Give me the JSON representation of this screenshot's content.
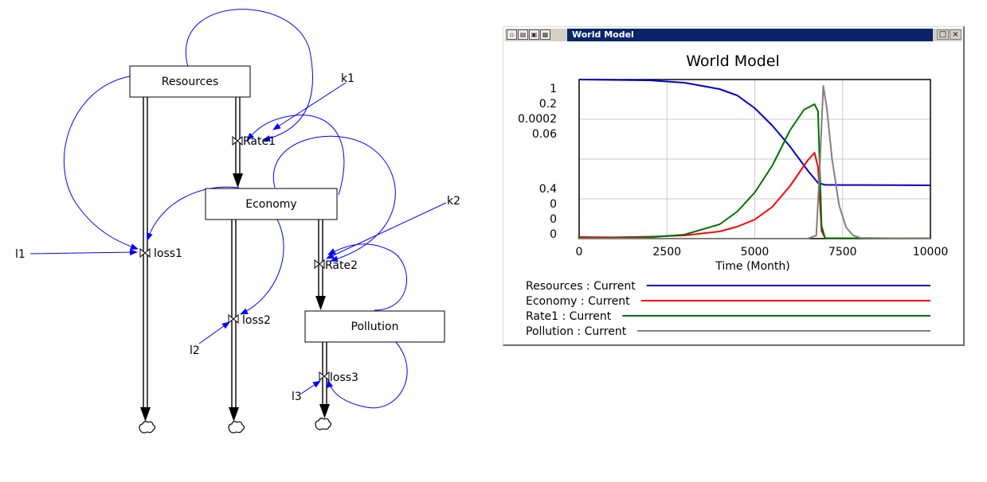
{
  "diagram": {
    "stocks": [
      {
        "id": "resources",
        "label": "Resources"
      },
      {
        "id": "economy",
        "label": "Economy"
      },
      {
        "id": "pollution",
        "label": "Pollution"
      }
    ],
    "valves": [
      {
        "id": "rate1",
        "label": "Rate1"
      },
      {
        "id": "rate2",
        "label": "Rate2"
      },
      {
        "id": "loss1",
        "label": "loss1"
      },
      {
        "id": "loss2",
        "label": "loss2"
      },
      {
        "id": "loss3",
        "label": "loss3"
      }
    ],
    "constants": [
      {
        "id": "k1",
        "label": "k1"
      },
      {
        "id": "k2",
        "label": "k2"
      },
      {
        "id": "l1",
        "label": "l1"
      },
      {
        "id": "l2",
        "label": "l2"
      },
      {
        "id": "l3",
        "label": "l3"
      }
    ],
    "link_color": "#0000ff"
  },
  "window": {
    "title": "World Model",
    "toolbar_icons": [
      "lock-icon",
      "print-icon",
      "copy-icon",
      "save-icon"
    ],
    "buttons": {
      "restore": "□",
      "close": "×"
    }
  },
  "chart_data": {
    "type": "line",
    "title": "World Model",
    "xlabel": "Time (Month)",
    "xlim": [
      0,
      10000
    ],
    "xticks": [
      0,
      2500,
      5000,
      7500,
      10000
    ],
    "grid": true,
    "y_scale_labels": [
      "1",
      "0.2",
      "0.0002",
      "0.06",
      "0.4",
      "0",
      "0",
      "0"
    ],
    "series": [
      {
        "name": "Resources : Current",
        "color": "#0000cc",
        "x": [
          0,
          2000,
          3000,
          4000,
          4500,
          5000,
          5500,
          6000,
          6500,
          6800,
          7000,
          7500,
          8000,
          9000,
          10000
        ],
        "y": [
          1,
          0.995,
          0.98,
          0.94,
          0.9,
          0.82,
          0.71,
          0.58,
          0.43,
          0.35,
          0.338,
          0.337,
          0.337,
          0.336,
          0.335
        ]
      },
      {
        "name": "Economy : Current",
        "color": "#ff0000",
        "x": [
          0,
          1000,
          2000,
          3000,
          4000,
          4500,
          5000,
          5500,
          6000,
          6500,
          6700,
          6800,
          6900,
          7000,
          7500,
          8000,
          10000
        ],
        "y": [
          0.01,
          0.008,
          0.012,
          0.02,
          0.045,
          0.075,
          0.12,
          0.2,
          0.33,
          0.49,
          0.54,
          0.45,
          0.05,
          0.003,
          0.002,
          0.002,
          0.002
        ]
      },
      {
        "name": "Rate1 : Current",
        "color": "#007000",
        "x": [
          0,
          1000,
          2000,
          3000,
          4000,
          4500,
          5000,
          5500,
          6000,
          6400,
          6700,
          6800,
          6900,
          7000,
          7500,
          8000,
          10000
        ],
        "y": [
          0.003,
          0.003,
          0.008,
          0.025,
          0.09,
          0.17,
          0.29,
          0.46,
          0.68,
          0.81,
          0.845,
          0.8,
          0.08,
          0.003,
          0.002,
          0.002,
          0.002
        ]
      },
      {
        "name": "Pollution : Current",
        "color": "#808080",
        "x": [
          0,
          6500,
          6750,
          6850,
          6950,
          7050,
          7200,
          7400,
          7600,
          7800,
          8000,
          10000
        ],
        "y": [
          0,
          0,
          0.02,
          0.45,
          0.96,
          0.82,
          0.5,
          0.21,
          0.07,
          0.02,
          0.005,
          0
        ]
      }
    ]
  }
}
